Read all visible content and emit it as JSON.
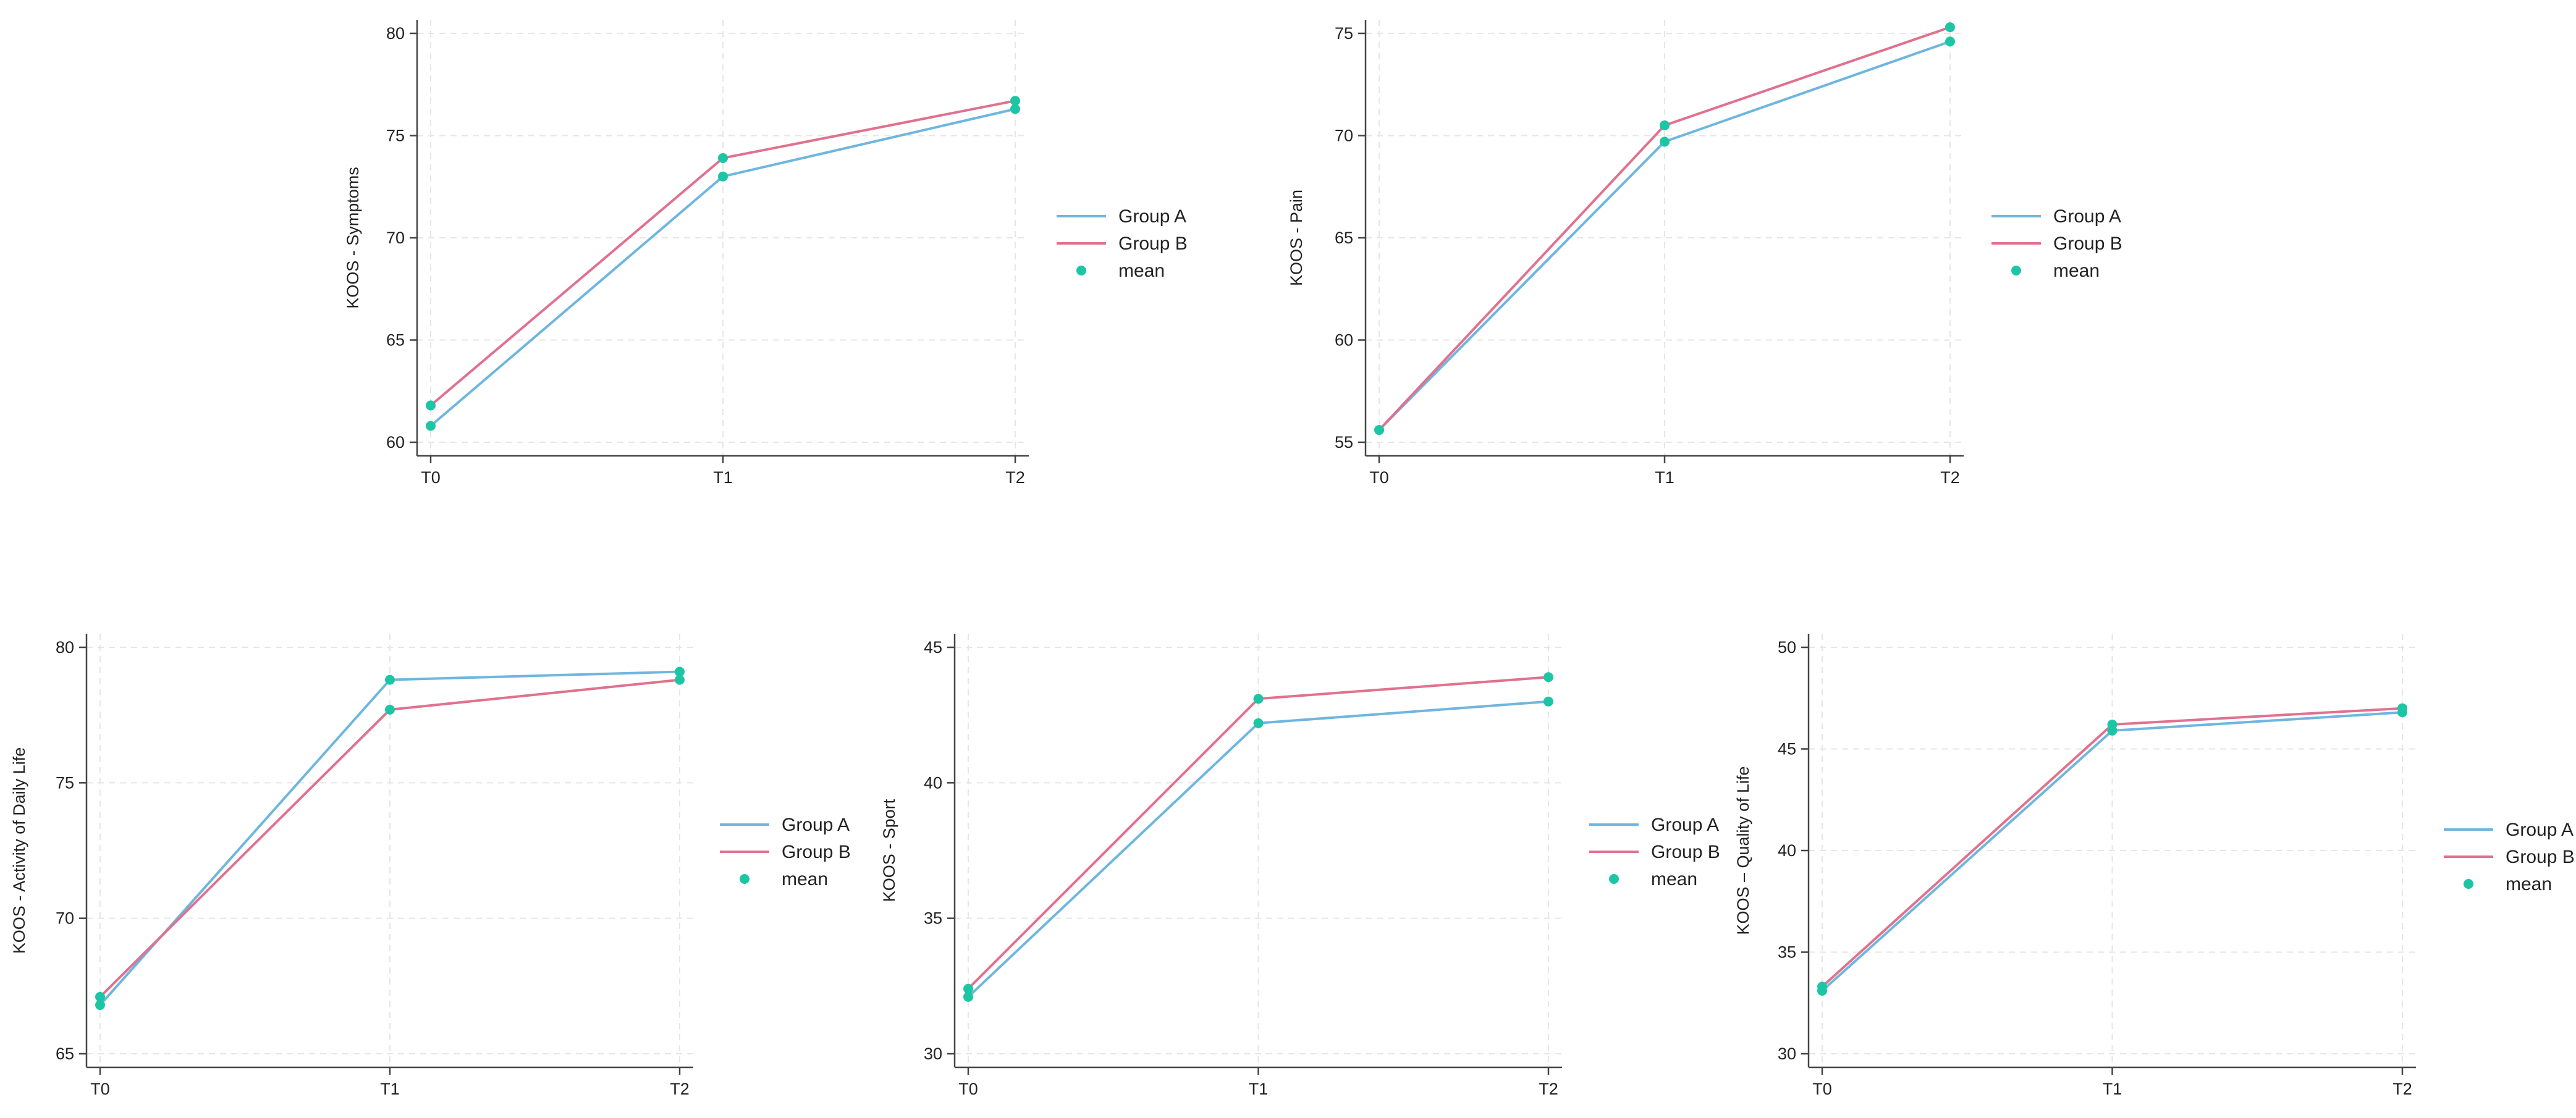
{
  "colors": {
    "group_a": "#6fb6de",
    "group_b": "#e0718f",
    "mean": "#1cc6a4",
    "axis": "#444444",
    "grid": "#e6e6e6",
    "text": "#222222"
  },
  "chart_data": [
    {
      "type": "line",
      "title": "",
      "xlabel": "",
      "ylabel": "KOOS - Symptoms",
      "categories": [
        "T0",
        "T1",
        "T2"
      ],
      "ylim": [
        60,
        80
      ],
      "yticks": [
        60,
        65,
        70,
        75,
        80
      ],
      "series": [
        {
          "name": "Group A",
          "values": [
            60.8,
            73.0,
            76.3
          ]
        },
        {
          "name": "Group B",
          "values": [
            61.8,
            73.9,
            76.7
          ]
        }
      ],
      "legend": [
        "Group A",
        "Group B",
        "mean"
      ]
    },
    {
      "type": "line",
      "title": "",
      "xlabel": "",
      "ylabel": "KOOS - Pain",
      "categories": [
        "T0",
        "T1",
        "T2"
      ],
      "ylim": [
        55,
        75
      ],
      "yticks": [
        55,
        60,
        65,
        70,
        75
      ],
      "series": [
        {
          "name": "Group A",
          "values": [
            55.6,
            69.7,
            74.6
          ]
        },
        {
          "name": "Group B",
          "values": [
            55.6,
            70.5,
            75.3
          ]
        }
      ],
      "legend": [
        "Group A",
        "Group B",
        "mean"
      ]
    },
    {
      "type": "line",
      "title": "",
      "xlabel": "",
      "ylabel": "KOOS - Activity of Daily Life",
      "categories": [
        "T0",
        "T1",
        "T2"
      ],
      "ylim": [
        65,
        80
      ],
      "yticks": [
        65,
        70,
        75,
        80
      ],
      "series": [
        {
          "name": "Group A",
          "values": [
            66.8,
            78.8,
            79.1
          ]
        },
        {
          "name": "Group B",
          "values": [
            67.1,
            77.7,
            78.8
          ]
        }
      ],
      "legend": [
        "Group A",
        "Group B",
        "mean"
      ]
    },
    {
      "type": "line",
      "title": "",
      "xlabel": "",
      "ylabel": "KOOS - Sport",
      "categories": [
        "T0",
        "T1",
        "T2"
      ],
      "ylim": [
        30,
        45
      ],
      "yticks": [
        30,
        35,
        40,
        45
      ],
      "series": [
        {
          "name": "Group A",
          "values": [
            32.1,
            42.2,
            43.0
          ]
        },
        {
          "name": "Group B",
          "values": [
            32.4,
            43.1,
            43.9
          ]
        }
      ],
      "legend": [
        "Group A",
        "Group B",
        "mean"
      ]
    },
    {
      "type": "line",
      "title": "",
      "xlabel": "",
      "ylabel": "KOOS – Quality of Life",
      "categories": [
        "T0",
        "T1",
        "T2"
      ],
      "ylim": [
        30,
        50
      ],
      "yticks": [
        30,
        35,
        40,
        45,
        50
      ],
      "series": [
        {
          "name": "Group A",
          "values": [
            33.1,
            45.9,
            46.8
          ]
        },
        {
          "name": "Group B",
          "values": [
            33.3,
            46.2,
            47.0
          ]
        }
      ],
      "legend": [
        "Group A",
        "Group B",
        "mean"
      ]
    }
  ]
}
